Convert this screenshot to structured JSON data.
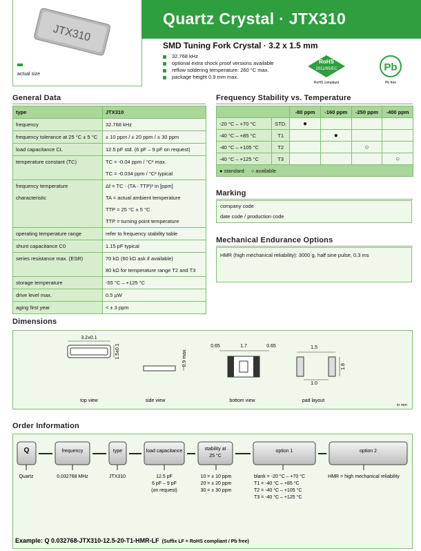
{
  "header": {
    "title": "Quartz Crystal · JTX310",
    "subtitle": "SMD Tuning Fork Crystal · 3.2 x 1.5 mm",
    "bullets": [
      "32.768 kHz",
      "optional extra shock proof versions available",
      "reflow soldering temperature: 260 °C max.",
      "package height 0.9 mm max."
    ],
    "image_label": "JTX310",
    "actual_size": "actual size",
    "rohs": {
      "title": "RoHS",
      "directive": "2011/65/EC",
      "caption": "RoHS compliant"
    },
    "pb": {
      "symbol": "Pb",
      "caption": "Pb free"
    }
  },
  "general_data": {
    "title": "General Data",
    "rows": [
      {
        "label": "type",
        "values": [
          "JTX310"
        ]
      },
      {
        "label": "frequency",
        "values": [
          "32.768 kHz"
        ]
      },
      {
        "label": "frequency tolerance at 25 °C ± 5 °C",
        "values": [
          "± 10 ppm / ± 20 ppm / ± 30 ppm"
        ]
      },
      {
        "label": "load capacitance CL",
        "values": [
          "12.5 pF std.  (6 pF – 9 pF on request)"
        ]
      },
      {
        "label": "temperature constant (TC)",
        "values": [
          "TC = -0.04 ppm / °C² max.",
          "TC = -0.034 ppm / °C² typical"
        ]
      },
      {
        "label": "frequency temperature characteristic",
        "values": [
          "Δf = TC · (TA - TTP)² in [ppm]",
          "TA = actual ambient temperature",
          "TTP = 25 °C ± 5 °C",
          "TTP = turning point temperature"
        ]
      },
      {
        "label": "operating temperature range",
        "values": [
          "refer to frequency stability table"
        ]
      },
      {
        "label": "shunt capacitance C0",
        "values": [
          "1.15 pF typical"
        ]
      },
      {
        "label": "series resistance max. (ESR)",
        "values": [
          "70 kΩ (60 kΩ ask if available)",
          "80 kΩ for temperature range T2 and T3"
        ]
      },
      {
        "label": "storage temperature",
        "values": [
          "-55 °C – +125 °C"
        ]
      },
      {
        "label": "drive level max.",
        "values": [
          "0.5 µW"
        ]
      },
      {
        "label": "aging first year",
        "values": [
          "< ± 3 ppm"
        ]
      }
    ]
  },
  "frequency_stability": {
    "title": "Frequency Stability vs. Temperature",
    "columns": [
      "-80 ppm",
      "-160 ppm",
      "-250 ppm",
      "-400 ppm"
    ],
    "rows": [
      {
        "range": "-20 °C –  +70 °C",
        "code": "STD.",
        "marks": [
          "●",
          null,
          null,
          null
        ]
      },
      {
        "range": "-40 °C –  +85 °C",
        "code": "T1",
        "marks": [
          null,
          "●",
          null,
          null
        ]
      },
      {
        "range": "-40 °C – +105 °C",
        "code": "T2",
        "marks": [
          null,
          null,
          "○",
          null
        ]
      },
      {
        "range": "-40 °C – +125 °C",
        "code": "T3",
        "marks": [
          null,
          null,
          null,
          "○"
        ]
      }
    ],
    "legend": [
      "● standard",
      "○ available"
    ]
  },
  "marking": {
    "title": "Marking",
    "lines": [
      "company code",
      "date code / production code"
    ]
  },
  "mechanical": {
    "title": "Mechanical Endurance Options",
    "text": "HMR (high mechanical reliability): 3000 g, half sine pulse, 0.3 ms"
  },
  "dimensions": {
    "title": "Dimensions",
    "labels": {
      "length": "3.2±0.1",
      "width": "1.5±0.1",
      "height": "0.9 max.",
      "pad_left": "0.65",
      "gap": "1.7",
      "pad_right": "0.65",
      "pad_span": "1.5",
      "pad_height": "1.8",
      "pad_gap": "1.0"
    },
    "views": [
      "top view",
      "side view",
      "bottom view",
      "pad layout"
    ],
    "unit": "in mm"
  },
  "order": {
    "title": "Order Information",
    "boxes": [
      "Q",
      "frequency",
      "type",
      "load capacitance",
      "stability at 25 °C",
      "option 1",
      "option 2"
    ],
    "descriptions": [
      [
        "Quartz"
      ],
      [
        "0.032768 MHz"
      ],
      [
        "JTX310"
      ],
      [
        "12.5 pF",
        "6 pF – 9 pF",
        "(on request)"
      ],
      [
        "10 = ± 10 ppm",
        "20 = ± 20 ppm",
        "30 = ± 30 ppm"
      ],
      [
        "blank = -20 °C –  +70 °C",
        "T1 = -40 °C –  +85 °C",
        "T2 = -40 °C – +105 °C",
        "T3 = -40 °C – +125 °C"
      ],
      [
        "HMR = high mechanical reliability"
      ]
    ],
    "example": "Example: Q 0.032768-JTX310-12.5-20-T1-HMR-LF",
    "example_note": "(Suffix LF = RoHS compliant / Pb free)"
  }
}
